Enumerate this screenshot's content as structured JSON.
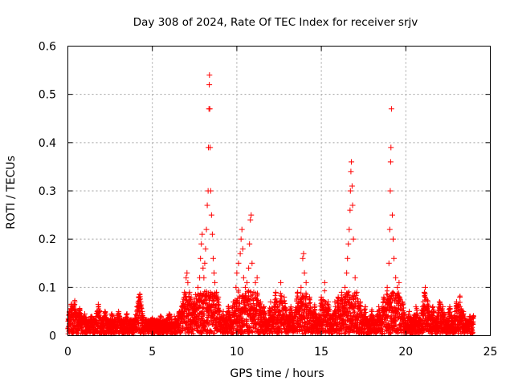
{
  "chart_data": {
    "type": "scatter",
    "title": "Day 308 of 2024, Rate Of TEC Index for receiver srjv",
    "xlabel": "GPS time / hours",
    "ylabel": "ROTI / TECUs",
    "xlim": [
      0,
      25
    ],
    "ylim": [
      0,
      0.6
    ],
    "xticks": [
      "0",
      "5",
      "10",
      "15",
      "20",
      "25"
    ],
    "yticks": [
      "0",
      "0.1",
      "0.2",
      "0.3",
      "0.4",
      "0.5",
      "0.6"
    ],
    "grid": true,
    "marker": "+",
    "color": "#ff0000",
    "baseline_span": [
      0,
      24
    ],
    "points": [
      [
        0.1,
        0.05
      ],
      [
        0.2,
        0.065
      ],
      [
        0.3,
        0.06
      ],
      [
        0.4,
        0.07
      ],
      [
        0.5,
        0.04
      ],
      [
        0.7,
        0.055
      ],
      [
        1.0,
        0.045
      ],
      [
        1.4,
        0.04
      ],
      [
        1.8,
        0.065
      ],
      [
        2.2,
        0.05
      ],
      [
        2.6,
        0.045
      ],
      [
        3.0,
        0.05
      ],
      [
        3.5,
        0.045
      ],
      [
        4.1,
        0.06
      ],
      [
        4.2,
        0.08
      ],
      [
        4.25,
        0.085
      ],
      [
        4.3,
        0.07
      ],
      [
        4.4,
        0.05
      ],
      [
        5.0,
        0.035
      ],
      [
        5.5,
        0.04
      ],
      [
        6.0,
        0.045
      ],
      [
        6.3,
        0.04
      ],
      [
        6.6,
        0.05
      ],
      [
        6.8,
        0.07
      ],
      [
        6.9,
        0.09
      ],
      [
        7.0,
        0.12
      ],
      [
        7.05,
        0.13
      ],
      [
        7.1,
        0.11
      ],
      [
        7.2,
        0.09
      ],
      [
        7.3,
        0.08
      ],
      [
        7.45,
        0.07
      ],
      [
        7.55,
        0.085
      ],
      [
        7.7,
        0.1
      ],
      [
        7.8,
        0.12
      ],
      [
        7.85,
        0.16
      ],
      [
        7.9,
        0.19
      ],
      [
        7.95,
        0.21
      ],
      [
        8.0,
        0.14
      ],
      [
        8.05,
        0.12
      ],
      [
        8.1,
        0.15
      ],
      [
        8.15,
        0.18
      ],
      [
        8.2,
        0.22
      ],
      [
        8.25,
        0.27
      ],
      [
        8.3,
        0.3
      ],
      [
        8.32,
        0.39
      ],
      [
        8.35,
        0.47
      ],
      [
        8.37,
        0.52
      ],
      [
        8.38,
        0.54
      ],
      [
        8.4,
        0.47
      ],
      [
        8.42,
        0.39
      ],
      [
        8.45,
        0.3
      ],
      [
        8.5,
        0.25
      ],
      [
        8.55,
        0.21
      ],
      [
        8.6,
        0.16
      ],
      [
        8.65,
        0.13
      ],
      [
        8.7,
        0.11
      ],
      [
        8.8,
        0.09
      ],
      [
        8.9,
        0.08
      ],
      [
        9.2,
        0.05
      ],
      [
        9.5,
        0.06
      ],
      [
        9.8,
        0.07
      ],
      [
        9.95,
        0.1
      ],
      [
        10.0,
        0.13
      ],
      [
        10.1,
        0.15
      ],
      [
        10.2,
        0.17
      ],
      [
        10.25,
        0.2
      ],
      [
        10.3,
        0.22
      ],
      [
        10.35,
        0.18
      ],
      [
        10.4,
        0.12
      ],
      [
        10.5,
        0.1
      ],
      [
        10.6,
        0.11
      ],
      [
        10.7,
        0.14
      ],
      [
        10.75,
        0.19
      ],
      [
        10.8,
        0.24
      ],
      [
        10.85,
        0.25
      ],
      [
        10.9,
        0.15
      ],
      [
        11.0,
        0.09
      ],
      [
        11.1,
        0.11
      ],
      [
        11.2,
        0.12
      ],
      [
        11.4,
        0.07
      ],
      [
        11.6,
        0.06
      ],
      [
        12.0,
        0.07
      ],
      [
        12.3,
        0.09
      ],
      [
        12.6,
        0.11
      ],
      [
        12.8,
        0.08
      ],
      [
        13.2,
        0.06
      ],
      [
        13.6,
        0.09
      ],
      [
        13.8,
        0.1
      ],
      [
        13.9,
        0.16
      ],
      [
        13.95,
        0.17
      ],
      [
        14.0,
        0.13
      ],
      [
        14.1,
        0.11
      ],
      [
        14.3,
        0.08
      ],
      [
        14.6,
        0.06
      ],
      [
        15.0,
        0.08
      ],
      [
        15.2,
        0.11
      ],
      [
        15.4,
        0.07
      ],
      [
        15.8,
        0.07
      ],
      [
        16.0,
        0.08
      ],
      [
        16.2,
        0.09
      ],
      [
        16.4,
        0.1
      ],
      [
        16.5,
        0.13
      ],
      [
        16.55,
        0.16
      ],
      [
        16.6,
        0.19
      ],
      [
        16.65,
        0.22
      ],
      [
        16.7,
        0.26
      ],
      [
        16.72,
        0.3
      ],
      [
        16.75,
        0.34
      ],
      [
        16.78,
        0.36
      ],
      [
        16.82,
        0.31
      ],
      [
        16.85,
        0.27
      ],
      [
        16.9,
        0.2
      ],
      [
        17.0,
        0.12
      ],
      [
        17.1,
        0.09
      ],
      [
        17.3,
        0.07
      ],
      [
        17.6,
        0.06
      ],
      [
        18.0,
        0.05
      ],
      [
        18.4,
        0.06
      ],
      [
        18.7,
        0.08
      ],
      [
        18.9,
        0.1
      ],
      [
        19.0,
        0.15
      ],
      [
        19.05,
        0.22
      ],
      [
        19.08,
        0.3
      ],
      [
        19.1,
        0.36
      ],
      [
        19.12,
        0.39
      ],
      [
        19.15,
        0.47
      ],
      [
        19.2,
        0.25
      ],
      [
        19.25,
        0.2
      ],
      [
        19.3,
        0.16
      ],
      [
        19.4,
        0.12
      ],
      [
        19.5,
        0.1
      ],
      [
        19.6,
        0.11
      ],
      [
        19.8,
        0.07
      ],
      [
        20.2,
        0.05
      ],
      [
        20.6,
        0.06
      ],
      [
        21.0,
        0.06
      ],
      [
        21.1,
        0.09
      ],
      [
        21.15,
        0.1
      ],
      [
        21.3,
        0.07
      ],
      [
        21.6,
        0.06
      ],
      [
        22.0,
        0.07
      ],
      [
        22.2,
        0.06
      ],
      [
        22.6,
        0.06
      ],
      [
        23.0,
        0.07
      ],
      [
        23.2,
        0.08
      ],
      [
        23.4,
        0.05
      ],
      [
        23.8,
        0.04
      ],
      [
        24.0,
        0.04
      ]
    ]
  }
}
